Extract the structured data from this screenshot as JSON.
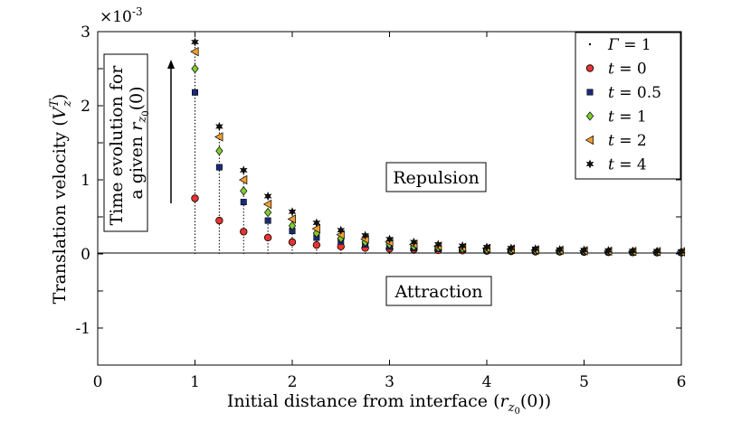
{
  "chart_data": {
    "type": "scatter",
    "title": "",
    "xlabel": "Initial distance from interface (r_{z0}(0))",
    "xlabel_parts": {
      "main": "Initial distance from interface (",
      "var": "r",
      "sub": "z",
      "subsub": "0",
      "tail": "(0))"
    },
    "ylabel": "Translation velocity (V_z^T)",
    "ylabel_parts": {
      "main": "Translation velocity (",
      "var": "V",
      "sub": "z",
      "sup": "T",
      "tail": ")"
    },
    "y_multiplier": "×10",
    "y_multiplier_exp": "-3",
    "xlim": [
      0,
      6
    ],
    "ylim": [
      -1.5,
      3
    ],
    "xticks": [
      "0",
      "1",
      "2",
      "3",
      "4",
      "5",
      "6"
    ],
    "yticks": [
      "-1",
      "0",
      "1",
      "2",
      "3"
    ],
    "x": [
      1,
      1.25,
      1.5,
      1.75,
      2,
      2.25,
      2.5,
      2.75,
      3,
      3.25,
      3.5,
      3.75,
      4,
      4.25,
      4.5,
      4.75,
      5,
      5.25,
      5.5,
      5.75,
      6
    ],
    "series": [
      {
        "name": "t = 0",
        "label_var": "t",
        "label_val": "0",
        "marker": "circle",
        "color": "#e8332e",
        "values": [
          0.75,
          0.45,
          0.3,
          0.22,
          0.16,
          0.12,
          0.1,
          0.08,
          0.07,
          0.06,
          0.05,
          0.045,
          0.04,
          0.035,
          0.03,
          0.028,
          0.025,
          0.022,
          0.02,
          0.018,
          0.017
        ]
      },
      {
        "name": "t = 0.5",
        "label_var": "t",
        "label_val": "0.5",
        "marker": "square",
        "color": "#1a2a7a",
        "values": [
          2.18,
          1.17,
          0.7,
          0.45,
          0.31,
          0.22,
          0.17,
          0.13,
          0.1,
          0.08,
          0.07,
          0.06,
          0.05,
          0.045,
          0.04,
          0.035,
          0.03,
          0.027,
          0.024,
          0.022,
          0.02
        ]
      },
      {
        "name": "t = 1",
        "label_var": "t",
        "label_val": "1",
        "marker": "diamond",
        "color": "#7fce2d",
        "values": [
          2.5,
          1.39,
          0.85,
          0.56,
          0.38,
          0.28,
          0.21,
          0.16,
          0.13,
          0.1,
          0.085,
          0.07,
          0.06,
          0.052,
          0.046,
          0.04,
          0.036,
          0.032,
          0.029,
          0.026,
          0.024
        ]
      },
      {
        "name": "t = 2",
        "label_var": "t",
        "label_val": "2",
        "marker": "triangle-left",
        "color": "#f0a030",
        "values": [
          2.73,
          1.58,
          1.0,
          0.67,
          0.47,
          0.34,
          0.26,
          0.2,
          0.16,
          0.13,
          0.105,
          0.088,
          0.075,
          0.064,
          0.056,
          0.049,
          0.043,
          0.038,
          0.034,
          0.031,
          0.028
        ]
      },
      {
        "name": "t = 4",
        "label_var": "t",
        "label_val": "4",
        "marker": "star",
        "color": "#111111",
        "values": [
          2.86,
          1.72,
          1.13,
          0.78,
          0.57,
          0.42,
          0.32,
          0.25,
          0.2,
          0.16,
          0.13,
          0.11,
          0.093,
          0.08,
          0.07,
          0.06,
          0.053,
          0.047,
          0.042,
          0.038,
          0.034
        ]
      }
    ],
    "gamma_series": {
      "name": "Γ = 1",
      "label_var": "Γ",
      "label_val": "1",
      "marker": "point"
    },
    "legend_position": "top-right",
    "annotations": {
      "repulsion": "Repulsion",
      "attraction": "Attraction",
      "time_evolution_line1": "Time evolution for",
      "time_evolution_line2": "a given",
      "time_evolution_var": "r",
      "time_evolution_sub": "z",
      "time_evolution_subsub": "0",
      "time_evolution_tail": "(0)"
    }
  }
}
